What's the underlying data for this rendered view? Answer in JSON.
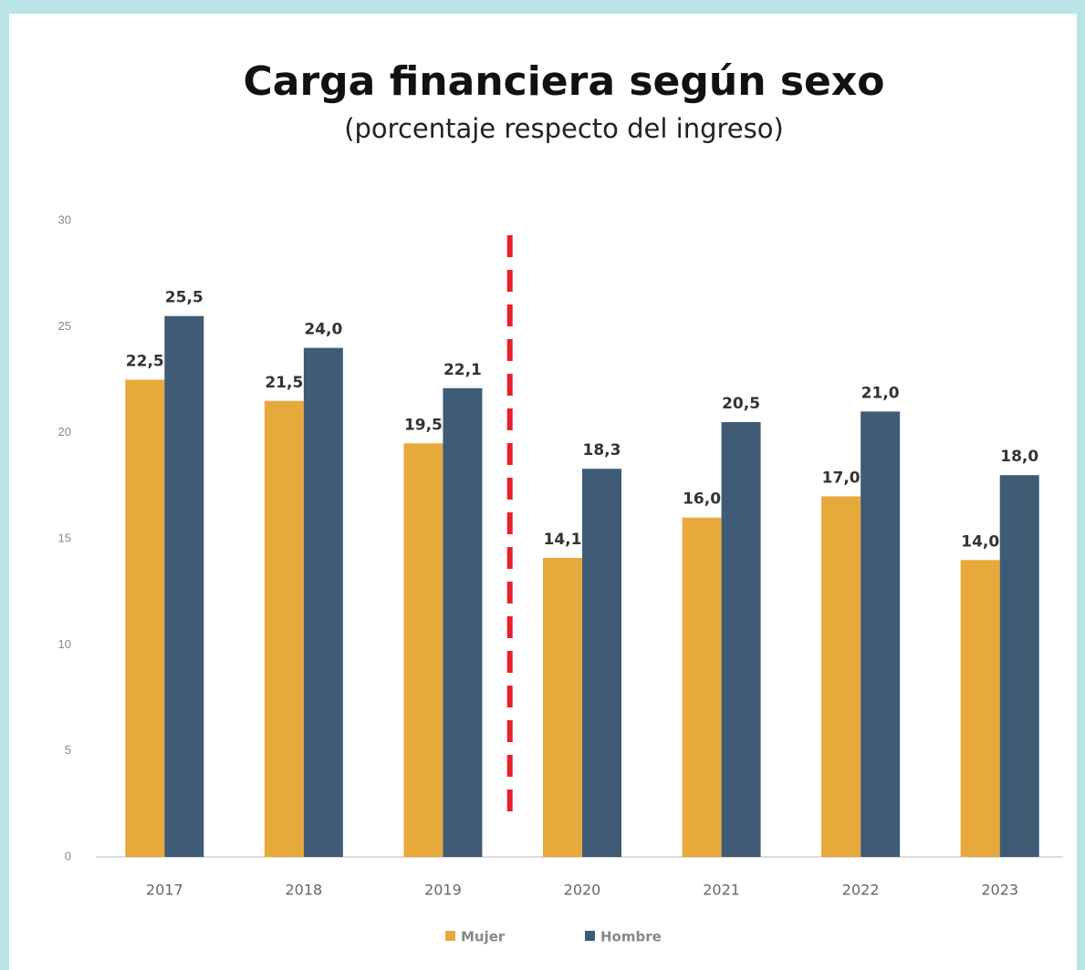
{
  "chart_data": {
    "type": "bar",
    "title": "Carga financiera según sexo",
    "subtitle": "(porcentaje respecto del ingreso)",
    "categories": [
      "2017",
      "2018",
      "2019",
      "2020",
      "2021",
      "2022",
      "2023"
    ],
    "series": [
      {
        "name": "Mujer",
        "color": "#e8a93c",
        "values": [
          22.5,
          21.5,
          19.5,
          14.1,
          16.0,
          17.0,
          14.0
        ],
        "value_labels": [
          "22,5",
          "21,5",
          "19,5",
          "14,1",
          "16,0",
          "17,0",
          "14,0"
        ]
      },
      {
        "name": "Hombre",
        "color": "#3f5b75",
        "values": [
          25.5,
          24.0,
          22.1,
          18.3,
          20.5,
          21.0,
          18.0
        ],
        "value_labels": [
          "25,5",
          "24,0",
          "22,1",
          "18,3",
          "20,5",
          "21,0",
          "18,0"
        ]
      }
    ],
    "ylim": [
      0,
      30
    ],
    "yticks": [
      0,
      5,
      10,
      15,
      20,
      25,
      30
    ],
    "grid": false,
    "legend": "bottom"
  }
}
